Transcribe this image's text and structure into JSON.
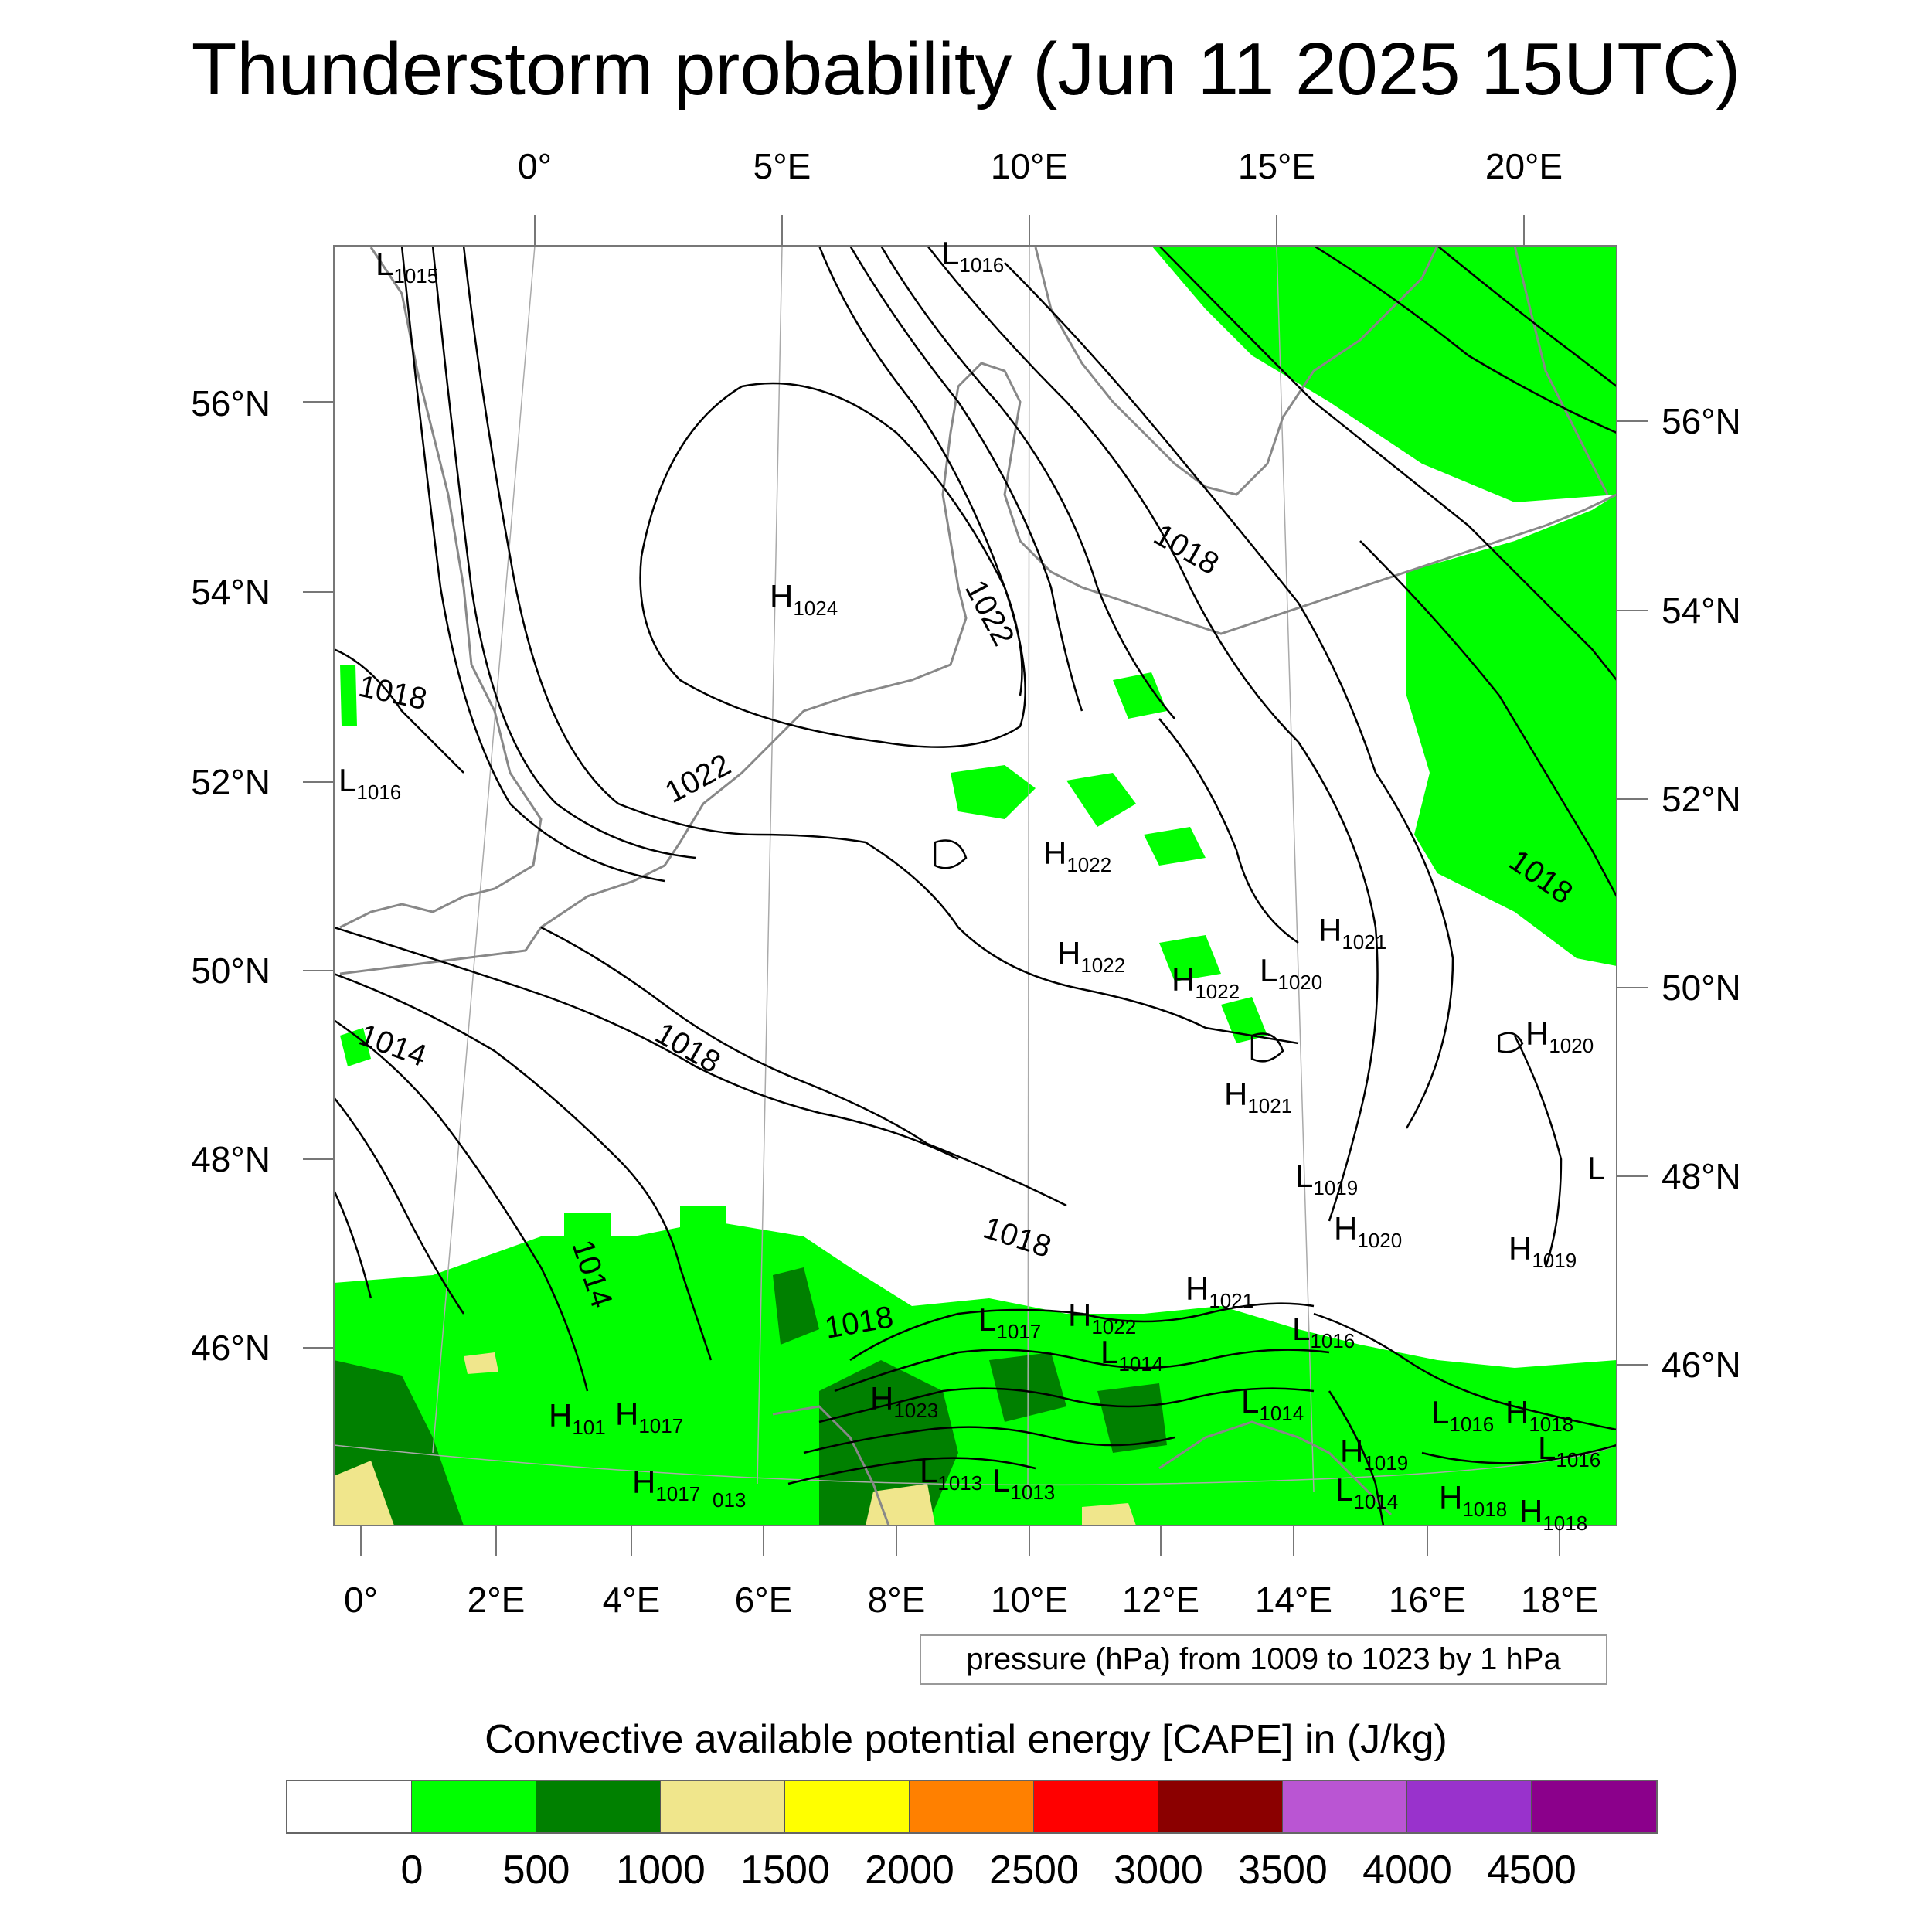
{
  "title": "Thunderstorm probability (Jun 11 2025 15UTC)",
  "map": {
    "top_lon_labels": [
      "0°",
      "5°E",
      "10°E",
      "15°E",
      "20°E"
    ],
    "left_lat_labels": [
      "56°N",
      "54°N",
      "52°N",
      "50°N",
      "48°N",
      "46°N"
    ],
    "right_lat_labels": [
      "56°N",
      "54°N",
      "52°N",
      "50°N",
      "48°N",
      "46°N"
    ],
    "bottom_lon_labels": [
      "0°",
      "2°E",
      "4°E",
      "6°E",
      "8°E",
      "10°E",
      "12°E",
      "14°E",
      "16°E",
      "18°E"
    ],
    "isobar_labels": [
      "1022",
      "1022",
      "1018",
      "1018",
      "1018",
      "1018",
      "1014",
      "1014",
      "1018",
      "1018"
    ],
    "pressure_centers": [
      {
        "type": "H",
        "value": "1024"
      },
      {
        "type": "L",
        "value": "1015"
      },
      {
        "type": "L",
        "value": "1016"
      },
      {
        "type": "L",
        "value": "1016"
      },
      {
        "type": "H",
        "value": "1022"
      },
      {
        "type": "H",
        "value": "1022"
      },
      {
        "type": "H",
        "value": "1022"
      },
      {
        "type": "L",
        "value": "1020"
      },
      {
        "type": "H",
        "value": "1021"
      },
      {
        "type": "H",
        "value": "1020"
      },
      {
        "type": "H",
        "value": "1021"
      },
      {
        "type": "L",
        "value": "1019"
      },
      {
        "type": "H",
        "value": "1020"
      },
      {
        "type": "H",
        "value": "1019"
      },
      {
        "type": "L",
        "value": ""
      },
      {
        "type": "H",
        "value": "1021"
      },
      {
        "type": "L",
        "value": "1016"
      },
      {
        "type": "L",
        "value": "1017"
      },
      {
        "type": "H",
        "value": "1022"
      },
      {
        "type": "L",
        "value": "1014"
      },
      {
        "type": "L",
        "value": "1014"
      },
      {
        "type": "L",
        "value": "1016"
      },
      {
        "type": "H",
        "value": "1018"
      },
      {
        "type": "L",
        "value": "1016"
      },
      {
        "type": "H",
        "value": "1019"
      },
      {
        "type": "L",
        "value": "1014"
      },
      {
        "type": "H",
        "value": "1018"
      },
      {
        "type": "H",
        "value": "1018"
      },
      {
        "type": "H",
        "value": "1023"
      },
      {
        "type": "L",
        "value": "1013"
      },
      {
        "type": "L",
        "value": "1013"
      },
      {
        "type": "H",
        "value": "101"
      },
      {
        "type": "H",
        "value": "1017"
      },
      {
        "type": "H",
        "value": "1017"
      },
      {
        "type": "",
        "value": "013"
      }
    ]
  },
  "info_box": "pressure (hPa) from 1009 to 1023 by 1 hPa",
  "colorbar": {
    "title": "Convective available potential energy [CAPE] in (J/kg)",
    "labels": [
      "0",
      "500",
      "1000",
      "1500",
      "2000",
      "2500",
      "3000",
      "3500",
      "4000",
      "4500"
    ],
    "colors": [
      "#ffffff",
      "#00ff00",
      "#008000",
      "#f0e68c",
      "#ffff00",
      "#ff8000",
      "#ff0000",
      "#8b0000",
      "#ba55d3",
      "#9932cc",
      "#8b008b"
    ]
  }
}
